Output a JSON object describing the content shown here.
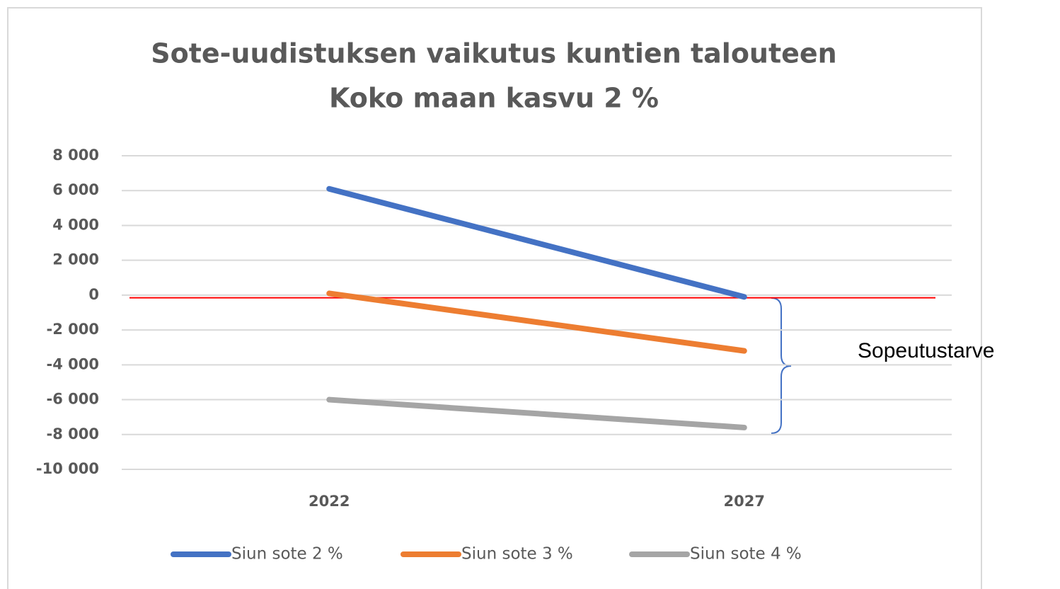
{
  "chart_data": {
    "type": "line",
    "title": "Sote-uudistuksen vaikutus kuntien talouteen",
    "subtitle": "Koko maan kasvu 2 %",
    "categories": [
      "2022",
      "2027"
    ],
    "series": [
      {
        "name": "Siun sote 2 %",
        "color": "#4472c4",
        "values": [
          6100,
          -100
        ]
      },
      {
        "name": "Siun sote 3 %",
        "color": "#ed7d31",
        "values": [
          100,
          -3200
        ]
      },
      {
        "name": "Siun sote 4 %",
        "color": "#a5a5a5",
        "values": [
          -6000,
          -7600
        ]
      }
    ],
    "ylim": [
      -10000,
      8000
    ],
    "yticks": [
      {
        "value": 8000,
        "label": "8 000"
      },
      {
        "value": 6000,
        "label": "6 000"
      },
      {
        "value": 4000,
        "label": "4 000"
      },
      {
        "value": 2000,
        "label": "2 000"
      },
      0,
      {
        "value": -2000,
        "label": "-2 000"
      },
      {
        "value": -4000,
        "label": "-4 000"
      },
      {
        "value": -6000,
        "label": "-6 000"
      },
      {
        "value": -8000,
        "label": "-8 000"
      },
      {
        "value": -10000,
        "label": "-10 000"
      }
    ],
    "grid": true,
    "legend": "bottom",
    "reference_line": {
      "value": -150,
      "color": "#ff0000"
    },
    "annotation": "Sopeutustarve"
  }
}
